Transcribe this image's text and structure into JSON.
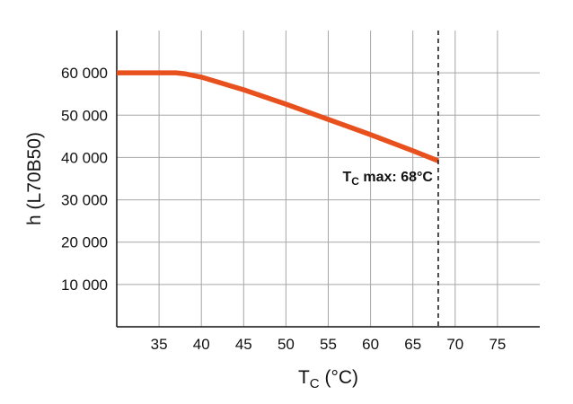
{
  "chart_data": {
    "type": "line",
    "title": "",
    "xlabel_main": "T",
    "xlabel_sub": "C",
    "xlabel_unit": " (°C)",
    "ylabel": "h (L70B50)",
    "xlim": [
      30,
      80
    ],
    "ylim": [
      0,
      70000
    ],
    "x_ticks": [
      35,
      40,
      45,
      50,
      55,
      60,
      65,
      70,
      75
    ],
    "x_tick_labels": [
      "35",
      "40",
      "45",
      "50",
      "55",
      "60",
      "65",
      "70",
      "75"
    ],
    "y_ticks": [
      10000,
      20000,
      30000,
      40000,
      50000,
      60000
    ],
    "y_tick_labels": [
      "10 000",
      "20 000",
      "30 000",
      "40 000",
      "50 000",
      "60 000"
    ],
    "grid": true,
    "series": [
      {
        "color": "#e8501e",
        "points": [
          {
            "x": 30,
            "y": 60000
          },
          {
            "x": 37,
            "y": 60000
          },
          {
            "x": 38,
            "y": 59800
          },
          {
            "x": 40,
            "y": 59000
          },
          {
            "x": 45,
            "y": 56000
          },
          {
            "x": 50,
            "y": 52600
          },
          {
            "x": 55,
            "y": 49000
          },
          {
            "x": 60,
            "y": 45400
          },
          {
            "x": 65,
            "y": 41600
          },
          {
            "x": 68,
            "y": 39200
          }
        ]
      }
    ],
    "vline": {
      "x": 68,
      "style": "dashed"
    },
    "annotation": {
      "main": "T",
      "sub": "C",
      "rest": " max: 68°C",
      "x": 68,
      "y": 39200
    }
  }
}
